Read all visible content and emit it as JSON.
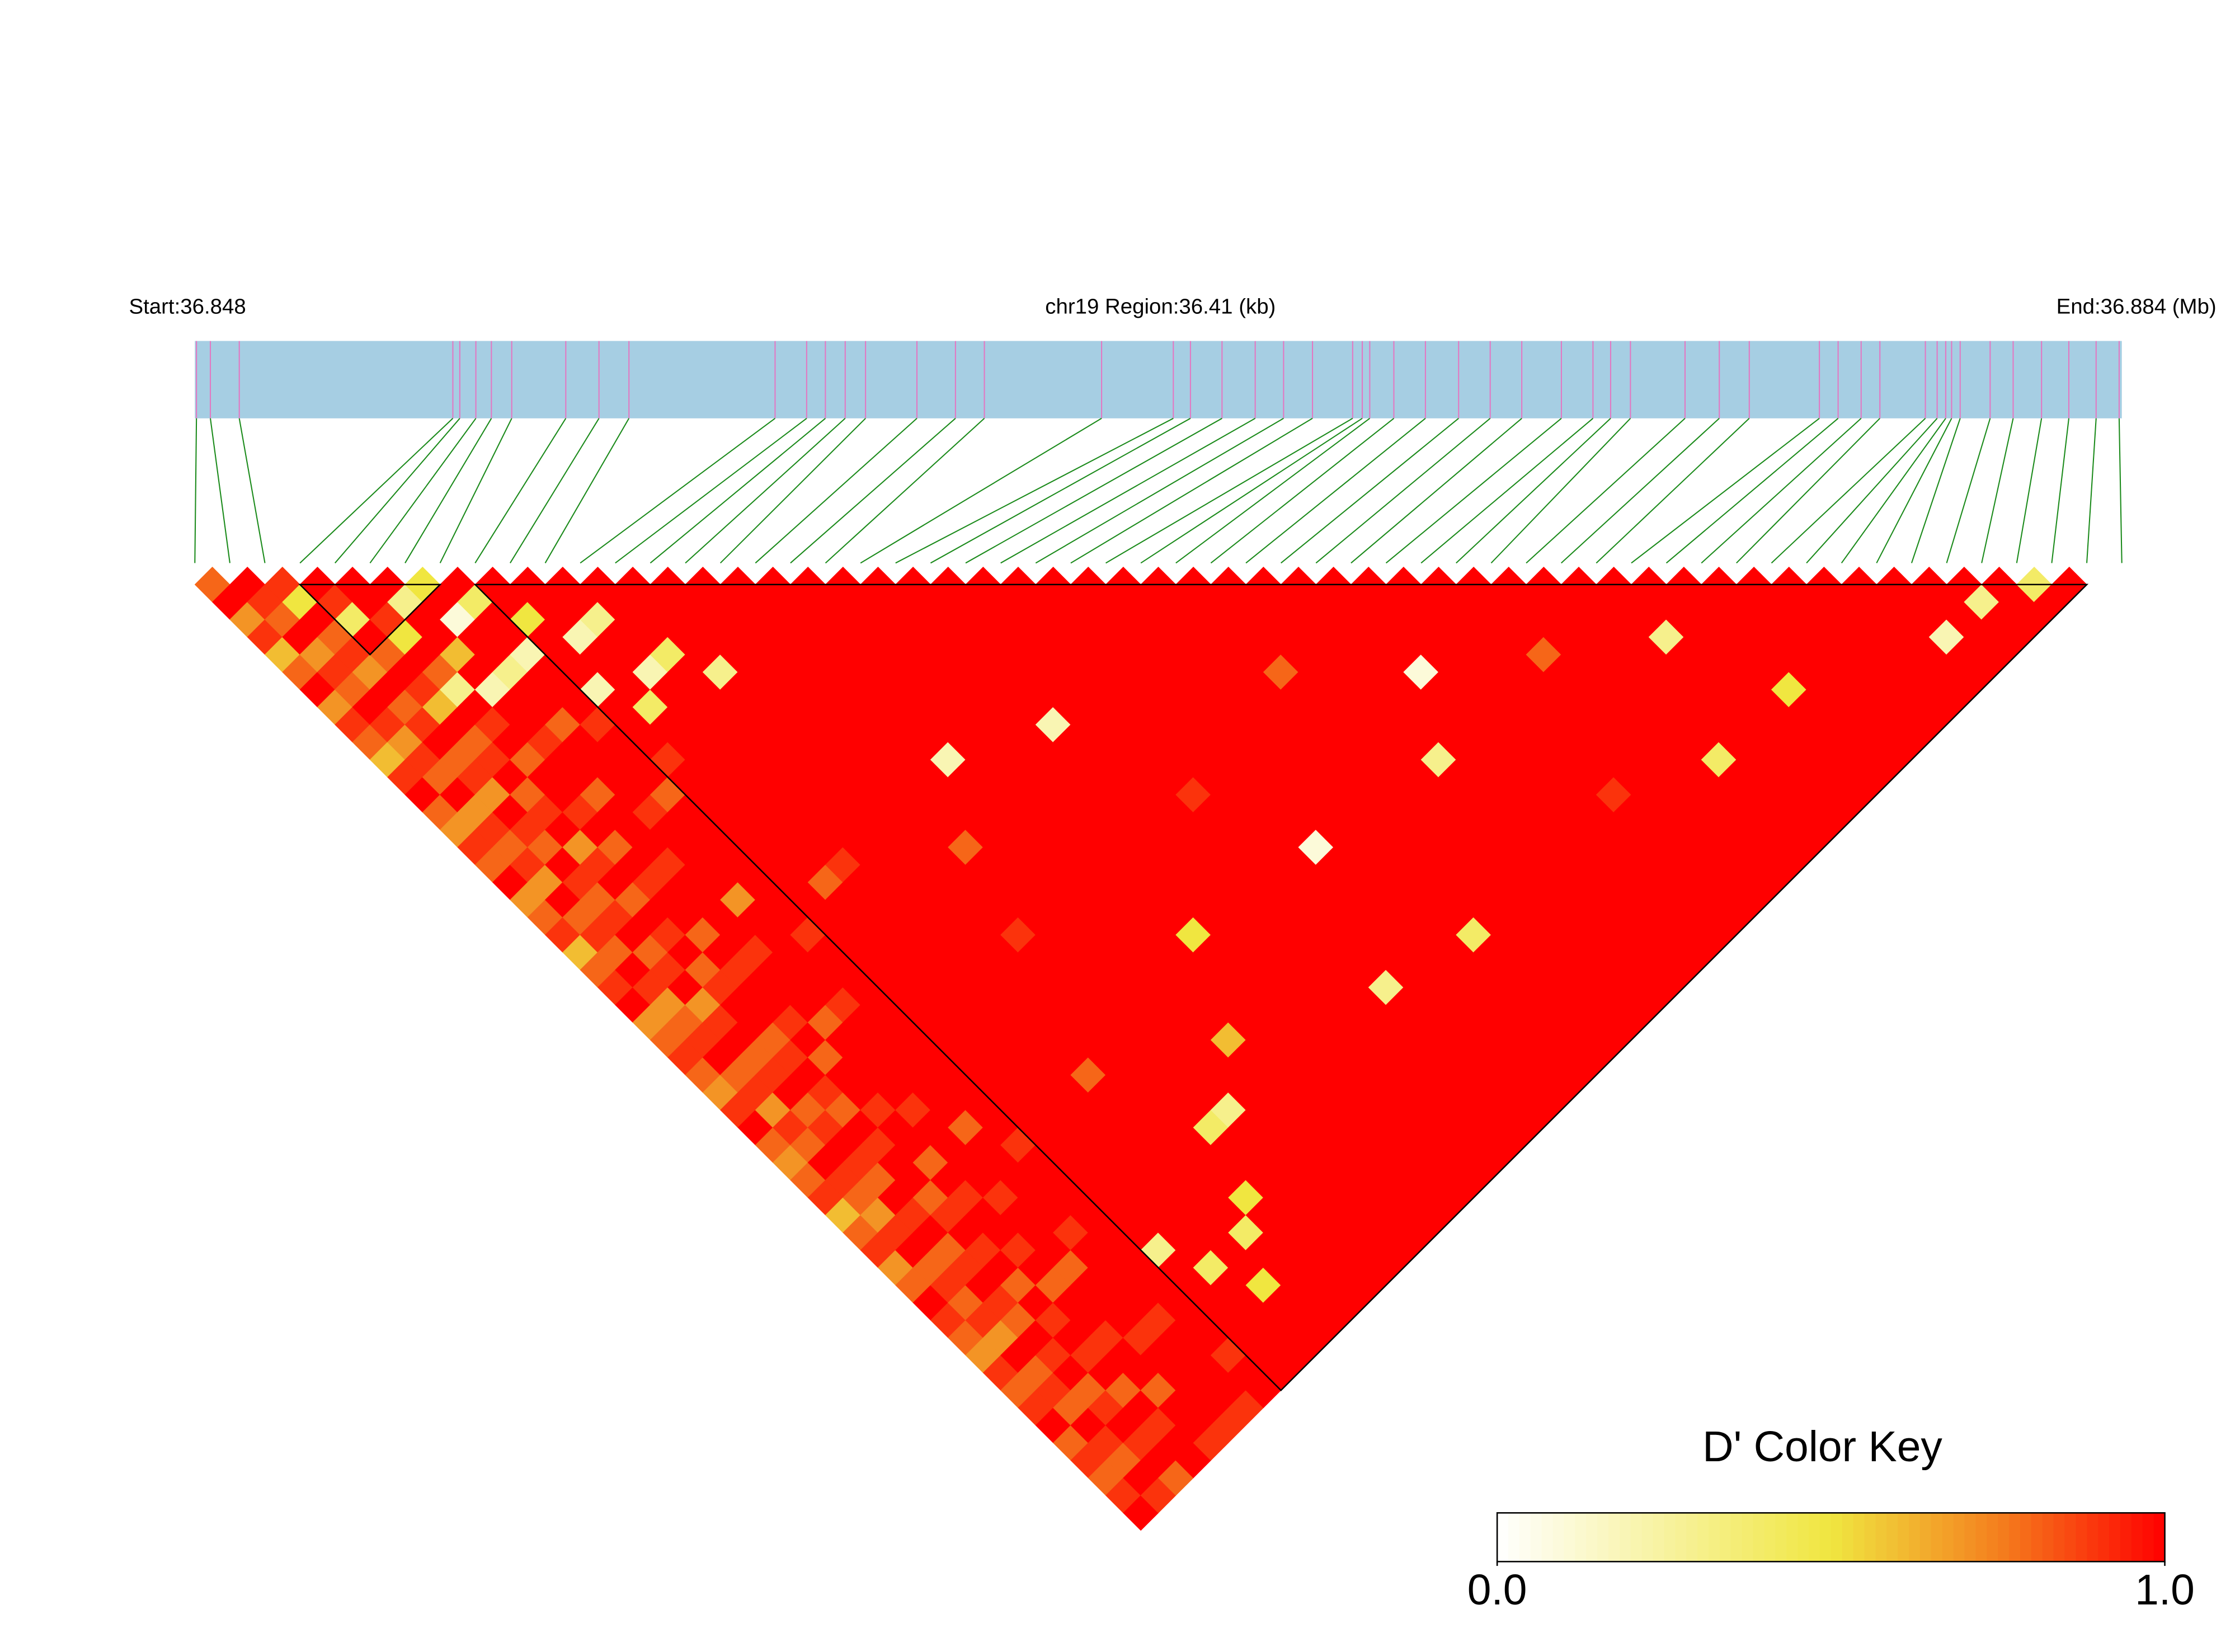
{
  "chart_data": {
    "type": "ld_heatmap",
    "start_label": "Start:36.848",
    "region_label": "chr19 Region:36.41 (kb)",
    "end_label": "End:36.884 (Mb)",
    "xlim": [
      36.848,
      36.884
    ],
    "track_color": "#a6cee3",
    "snp_line_color": "#e377c2",
    "link_color": "#1a8a1a",
    "block_outline_color": "#000000",
    "snp_positions": [
      36.84803,
      36.84829,
      36.84883,
      36.85282,
      36.85295,
      36.85325,
      36.85354,
      36.85392,
      36.85493,
      36.85555,
      36.85611,
      36.85884,
      36.85943,
      36.85978,
      36.86015,
      36.86053,
      36.86149,
      36.86221,
      36.86275,
      36.86494,
      36.86628,
      36.8666,
      36.86719,
      36.86781,
      36.86834,
      36.86888,
      36.86963,
      36.86981,
      36.86995,
      36.8704,
      36.87099,
      36.87161,
      36.8722,
      36.87279,
      36.87353,
      36.87412,
      36.87445,
      36.87482,
      36.87584,
      36.87648,
      36.87704,
      36.87835,
      36.8787,
      36.87913,
      36.87948,
      36.88033,
      36.88055,
      36.88071,
      36.88082,
      36.88098,
      36.88154,
      36.88197,
      36.8825,
      36.88301,
      36.88352,
      36.88395
    ],
    "ld_blocks": [
      [
        3,
        7
      ],
      [
        8,
        54
      ]
    ],
    "ld_matrix": [
      [
        0.8,
        1,
        0.7,
        0.9,
        0.6,
        0.8,
        1,
        0.7,
        0.9,
        0.8,
        0.6,
        0.9,
        1,
        0.8,
        0.7,
        0.9,
        0.8,
        1,
        0.7,
        0.8,
        0.9,
        0.6,
        0.8,
        0.9,
        1,
        0.7,
        0.8,
        0.9,
        0.8,
        0.7,
        0.9,
        1,
        0.8,
        0.7,
        0.8,
        0.9,
        0.6,
        0.8,
        0.9,
        0.7,
        0.8,
        1,
        0.9,
        0.8,
        0.7,
        0.9,
        0.8,
        0.9,
        1,
        0.8,
        0.9,
        0.8,
        0.9,
        1
      ],
      [
        1,
        0.9,
        0.8,
        1,
        0.7,
        0.9,
        0.8,
        1,
        0.9,
        0.7,
        0.9,
        0.8,
        1,
        0.7,
        0.9,
        0.8,
        0.9,
        0.7,
        1,
        0.8,
        0.9,
        0.8,
        1,
        0.9,
        0.7,
        0.8,
        0.9,
        1,
        0.8,
        0.9,
        0.7,
        0.9,
        0.8,
        1,
        0.9,
        0.8,
        0.7,
        0.9,
        1,
        0.8,
        0.9,
        0.8,
        0.9,
        0.7,
        1,
        0.8,
        0.9,
        0.8,
        1,
        0.9,
        0.8,
        1,
        0.9
      ],
      [
        0.9,
        0.5,
        1,
        0.8,
        0.9,
        0.7,
        1,
        0.8,
        0.9,
        1,
        0.8,
        0.9,
        0.7,
        1,
        0.9,
        0.8,
        1,
        0.9,
        0.8,
        0.9,
        1,
        0.8,
        0.9,
        1,
        0.7,
        0.9,
        1,
        0.8,
        0.9,
        1,
        0.8,
        0.9,
        1,
        0.9,
        0.8,
        1,
        0.9,
        1,
        0.8,
        0.9,
        1,
        0.9,
        0.8,
        1,
        0.9,
        1,
        0.8,
        0.9,
        1,
        0.9,
        1,
        0.8
      ],
      [
        1,
        0.9,
        0.4,
        1,
        0.8,
        1,
        0.9,
        0.6,
        1,
        0.8,
        0.9,
        1,
        0.8,
        0.9,
        1,
        0.7,
        0.9,
        1,
        0.8,
        1,
        0.9,
        1,
        0.8,
        0.9,
        1,
        1,
        0.8,
        0.9,
        1,
        0.9,
        0.8,
        1,
        0.9,
        1,
        1,
        0.8,
        0.9,
        1,
        0.9,
        1,
        0.8,
        1,
        0.9,
        1,
        0.9,
        1,
        0.8,
        1,
        0.9,
        1,
        1
      ],
      [
        1,
        1,
        0.9,
        0.5,
        1,
        0.8,
        0.3,
        1,
        0.9,
        1,
        0.8,
        1,
        1,
        0.9,
        1,
        0.8,
        1,
        0.9,
        1,
        1,
        0.8,
        1,
        0.9,
        1,
        1,
        0.9,
        1,
        0.8,
        1,
        1,
        0.9,
        1,
        1,
        0.8,
        1,
        0.9,
        1,
        1,
        0.9,
        1,
        0.8,
        1,
        1,
        0.9,
        1,
        1,
        0.8,
        1,
        1,
        0.9
      ],
      [
        1,
        0.3,
        1,
        1,
        0.6,
        1,
        0.2,
        1,
        1,
        0.9,
        1,
        1,
        0.8,
        1,
        1,
        1,
        0.9,
        1,
        1,
        1,
        1,
        0.9,
        1,
        1,
        1,
        0.8,
        1,
        1,
        1,
        1,
        0.9,
        1,
        1,
        1,
        1,
        0.9,
        1,
        1,
        1,
        0.8,
        1,
        1,
        1,
        0.9,
        1,
        1,
        1,
        1,
        0.9
      ],
      [
        0.5,
        1,
        0.1,
        1,
        1,
        0.3,
        1,
        1,
        0.8,
        1,
        1,
        1,
        1,
        0.9,
        1,
        1,
        1,
        1,
        0.7,
        1,
        1,
        1,
        1,
        1,
        0.9,
        1,
        1,
        1,
        1,
        1,
        1,
        0.8,
        1,
        1,
        1,
        1,
        1,
        0.9,
        1,
        1,
        1,
        1,
        0.9,
        1,
        1,
        1,
        1,
        0.9
      ],
      [
        1,
        0.4,
        1,
        1,
        0.2,
        1,
        1,
        1,
        0.9,
        1,
        1,
        1,
        0.8,
        1,
        1,
        1,
        1,
        1,
        1,
        1,
        0.9,
        1,
        1,
        1,
        1,
        1,
        1,
        1,
        1,
        1,
        1,
        1,
        0.9,
        1,
        1,
        1,
        1,
        1,
        1,
        1,
        1,
        1,
        1,
        1,
        0.9,
        1,
        1
      ],
      [
        1,
        1,
        0.5,
        1,
        1,
        1,
        0.2,
        1,
        1,
        1,
        0.9,
        1,
        1,
        1,
        1,
        1,
        1,
        1,
        1,
        1,
        1,
        1,
        1,
        1,
        1,
        1,
        1,
        1,
        1,
        1,
        1,
        1,
        1,
        1,
        1,
        1,
        1,
        1,
        0.3,
        1,
        1,
        1,
        1,
        1,
        1,
        1
      ],
      [
        1,
        1,
        1,
        0.2,
        1,
        1,
        1,
        0.4,
        1,
        1,
        1,
        1,
        1,
        1,
        1,
        1,
        1,
        0.8,
        1,
        1,
        1,
        1,
        1,
        1,
        1,
        1,
        1,
        1,
        1,
        1,
        1,
        1,
        1,
        1,
        1,
        1,
        1,
        1,
        1,
        0.4,
        1,
        1,
        1,
        1,
        1
      ],
      [
        1,
        1,
        0.3,
        1,
        1,
        0.2,
        1,
        1,
        1,
        1,
        1,
        1,
        1,
        1,
        1,
        1,
        0.9,
        1,
        1,
        1,
        1,
        1,
        1,
        1,
        1,
        1,
        1,
        1,
        1,
        1,
        1,
        1,
        1,
        1,
        1,
        1,
        1,
        1,
        1,
        1,
        0.5,
        1,
        1,
        1
      ],
      [
        1,
        1,
        1,
        1,
        0.4,
        1,
        1,
        1,
        1,
        1,
        1,
        1,
        1,
        1,
        1,
        1,
        1,
        1,
        1,
        1,
        1,
        1,
        1,
        1,
        1,
        1,
        1,
        1,
        0.8,
        1,
        1,
        1,
        1,
        1,
        1,
        1,
        1,
        0.4,
        1,
        1,
        1,
        1,
        1
      ],
      [
        1,
        1,
        1,
        1,
        1,
        0.3,
        1,
        1,
        1,
        1,
        1,
        1,
        1,
        1,
        1,
        1,
        1,
        1,
        1,
        1,
        1,
        1,
        1,
        1,
        1,
        1,
        1,
        1,
        1,
        1,
        1,
        1,
        1,
        1,
        1,
        0.5,
        1,
        1,
        1,
        1,
        1,
        1
      ],
      [
        1,
        1,
        1,
        1,
        1,
        1,
        1,
        1,
        1,
        1,
        1,
        1,
        1,
        1,
        1,
        1,
        1,
        1,
        1,
        1,
        0.9,
        1,
        1,
        1,
        1,
        1,
        1,
        1,
        1,
        1,
        1,
        0.4,
        1,
        1,
        1,
        1,
        1,
        1,
        1,
        1,
        1
      ],
      [
        1,
        1,
        1,
        1,
        1,
        1,
        1,
        1,
        1,
        1,
        1,
        1,
        1,
        1,
        1,
        0.8,
        1,
        1,
        1,
        1,
        1,
        1,
        1,
        1,
        1,
        1,
        1,
        1,
        1,
        1,
        0.3,
        1,
        1,
        1,
        1,
        1,
        1,
        1,
        1,
        1
      ],
      [
        1,
        1,
        1,
        1,
        1,
        1,
        1,
        1,
        1,
        1,
        1,
        1,
        1,
        1,
        1,
        1,
        1,
        1,
        1,
        1,
        1,
        1,
        1,
        1,
        1,
        1,
        1,
        1,
        1,
        1,
        1,
        1,
        1,
        1,
        1,
        1,
        1,
        1,
        1
      ],
      [
        1,
        1,
        1,
        1,
        1,
        1,
        1,
        1,
        1,
        1,
        0.2,
        1,
        1,
        1,
        1,
        1,
        1,
        1,
        1,
        1,
        1,
        1,
        1,
        1,
        1,
        1,
        0.6,
        1,
        1,
        1,
        1,
        1,
        1,
        1,
        1,
        1,
        1,
        1
      ],
      [
        1,
        1,
        1,
        1,
        1,
        1,
        1,
        1,
        1,
        1,
        1,
        1,
        1,
        1,
        1,
        1,
        1,
        1,
        1,
        1,
        1,
        1,
        1,
        1,
        1,
        1,
        1,
        1,
        1,
        1,
        1,
        1,
        1,
        1,
        1,
        1,
        1
      ],
      [
        1,
        1,
        1,
        1,
        1,
        1,
        1,
        1,
        1,
        1,
        1,
        1,
        1,
        1,
        1,
        1,
        1,
        1,
        1,
        1,
        0.5,
        1,
        1,
        1,
        1,
        1,
        1,
        1,
        1,
        1,
        1,
        1,
        1,
        1,
        1,
        1
      ],
      [
        1,
        1,
        1,
        1,
        1,
        1,
        1,
        1,
        1,
        1,
        1,
        1,
        1,
        1,
        1,
        1,
        1,
        1,
        1,
        1,
        1,
        1,
        1,
        1,
        1,
        1,
        1,
        1,
        1,
        1,
        1,
        1,
        1,
        1,
        1
      ],
      [
        1,
        1,
        1,
        1,
        1,
        1,
        1,
        1,
        0.2,
        1,
        1,
        1,
        1,
        1,
        1,
        1,
        1,
        1,
        1,
        1,
        1,
        1,
        1,
        1,
        1,
        1,
        1,
        1,
        1,
        1,
        1,
        1,
        1,
        1
      ],
      [
        1,
        1,
        1,
        1,
        1,
        1,
        1,
        1,
        1,
        1,
        1,
        1,
        1,
        1,
        1,
        1,
        1,
        1,
        1,
        1,
        1,
        1,
        1,
        1,
        1,
        1,
        1,
        1,
        1,
        1,
        1,
        1,
        1
      ],
      [
        1,
        1,
        1,
        1,
        1,
        1,
        1,
        1,
        1,
        1,
        1,
        1,
        0.9,
        1,
        1,
        1,
        1,
        1,
        1,
        1,
        1,
        1,
        1,
        0.3,
        1,
        1,
        1,
        1,
        1,
        1,
        1,
        1
      ],
      [
        1,
        1,
        1,
        1,
        1,
        1,
        1,
        1,
        1,
        1,
        1,
        1,
        1,
        1,
        1,
        1,
        1,
        1,
        1,
        1,
        1,
        1,
        1,
        1,
        1,
        1,
        1,
        1,
        1,
        1,
        1
      ],
      [
        1,
        1,
        1,
        1,
        1,
        1,
        1,
        1,
        1,
        1,
        1,
        1,
        1,
        1,
        1,
        0.1,
        1,
        1,
        1,
        1,
        1,
        1,
        1,
        1,
        1,
        1,
        1,
        1,
        1,
        1
      ],
      [
        1,
        1,
        1,
        1,
        1,
        1,
        1,
        1,
        1,
        1,
        1,
        1,
        1,
        1,
        1,
        1,
        1,
        1,
        1,
        1,
        1,
        1,
        1,
        1,
        1,
        1,
        1,
        1,
        1
      ],
      [
        1,
        1,
        1,
        1,
        1,
        1,
        1,
        1,
        1,
        1,
        1,
        1,
        1,
        1,
        1,
        1,
        1,
        1,
        1,
        1,
        0.4,
        1,
        1,
        1,
        1,
        1,
        1,
        1
      ],
      [
        1,
        1,
        1,
        1,
        1,
        1,
        1,
        1,
        1,
        1,
        1,
        1,
        1,
        1,
        1,
        1,
        1,
        1,
        1,
        1,
        1,
        1,
        1,
        1,
        1,
        1,
        1
      ],
      [
        1,
        1,
        1,
        1,
        1,
        0.8,
        1,
        1,
        1,
        1,
        1,
        1,
        1,
        1,
        1,
        1,
        1,
        1,
        1,
        1,
        1,
        1,
        1,
        1,
        1,
        1
      ],
      [
        1,
        1,
        1,
        1,
        1,
        1,
        1,
        1,
        1,
        1,
        1,
        1,
        1,
        1,
        1,
        1,
        1,
        1,
        1,
        1,
        1,
        1,
        1,
        1,
        1
      ],
      [
        1,
        1,
        1,
        1,
        1,
        1,
        1,
        1,
        1,
        1,
        0.3,
        1,
        1,
        1,
        1,
        1,
        1,
        1,
        1,
        1,
        1,
        1,
        1,
        1
      ],
      [
        1,
        1,
        1,
        1,
        1,
        1,
        1,
        1,
        1,
        1,
        1,
        1,
        1,
        1,
        1,
        1,
        1,
        1,
        1,
        1,
        1,
        1,
        1
      ],
      [
        1,
        1,
        1,
        1,
        1,
        0.1,
        1,
        1,
        1,
        1,
        1,
        1,
        1,
        1,
        1,
        1,
        1,
        1,
        1,
        1,
        1,
        1
      ],
      [
        1,
        1,
        1,
        1,
        1,
        1,
        1,
        1,
        1,
        1,
        1,
        1,
        1,
        1,
        1,
        1,
        1,
        1,
        1,
        1,
        1
      ],
      [
        1,
        1,
        1,
        1,
        1,
        1,
        1,
        1,
        1,
        1,
        1,
        1,
        0.9,
        1,
        1,
        1,
        1,
        1,
        1,
        1
      ],
      [
        1,
        1,
        1,
        1,
        1,
        1,
        1,
        1,
        1,
        1,
        1,
        1,
        1,
        1,
        1,
        1,
        1,
        1,
        1
      ],
      [
        1,
        1,
        1,
        1,
        0.8,
        1,
        1,
        1,
        1,
        1,
        1,
        1,
        1,
        1,
        1,
        1,
        1,
        1
      ],
      [
        1,
        1,
        1,
        1,
        1,
        1,
        1,
        1,
        1,
        1,
        1,
        1,
        1,
        1,
        1,
        1,
        1
      ],
      [
        1,
        1,
        1,
        1,
        1,
        1,
        1,
        1,
        1,
        1,
        0.4,
        1,
        1,
        1,
        1,
        1
      ],
      [
        1,
        1,
        1,
        1,
        1,
        1,
        1,
        1,
        1,
        1,
        1,
        1,
        1,
        1,
        1
      ],
      [
        1,
        1,
        1,
        0.3,
        1,
        1,
        1,
        1,
        1,
        1,
        1,
        1,
        1,
        1
      ],
      [
        1,
        1,
        1,
        1,
        1,
        1,
        1,
        1,
        1,
        1,
        1,
        1,
        1
      ],
      [
        1,
        1,
        1,
        1,
        1,
        1,
        0.5,
        1,
        1,
        1,
        1,
        1
      ],
      [
        1,
        1,
        1,
        1,
        1,
        1,
        1,
        1,
        1,
        1,
        1
      ],
      [
        1,
        1,
        1,
        1,
        1,
        1,
        1,
        1,
        1,
        1
      ],
      [
        1,
        1,
        1,
        1,
        1,
        1,
        1,
        1,
        1
      ],
      [
        1,
        1,
        1,
        1,
        1,
        1,
        1,
        1
      ],
      [
        1,
        1,
        1,
        1,
        1,
        1,
        1
      ],
      [
        1,
        1,
        1,
        0.2,
        1,
        1
      ],
      [
        1,
        1,
        1,
        1,
        1
      ],
      [
        1,
        0.3,
        1,
        1
      ],
      [
        1,
        1,
        1
      ],
      [
        0.4,
        1
      ],
      [
        1
      ]
    ],
    "color_key": {
      "title": "D' Color Key",
      "lim": [
        0,
        1
      ],
      "ticks": [
        {
          "value": 0,
          "label": "0.0"
        },
        {
          "value": 1,
          "label": "1.0"
        }
      ],
      "stops": [
        {
          "value": 0,
          "color": "#ffffff"
        },
        {
          "value": 0.5,
          "color": "#f0e640"
        },
        {
          "value": 0.75,
          "color": "#f4801e"
        },
        {
          "value": 1,
          "color": "#ff0000"
        }
      ]
    }
  }
}
